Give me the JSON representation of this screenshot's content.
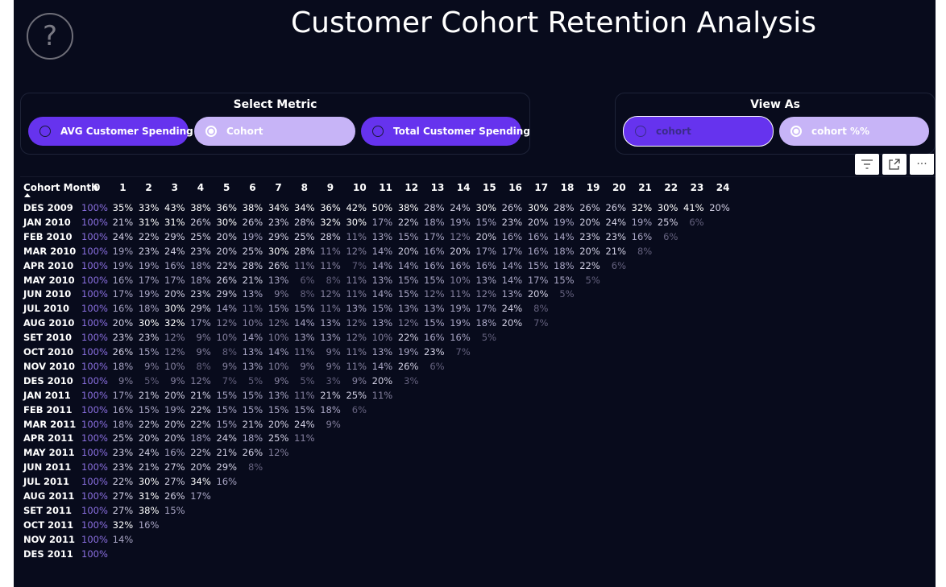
{
  "page": {
    "title": "Customer Cohort Retention Analysis",
    "help_icon": "question-mark-icon"
  },
  "metric_slicer": {
    "title": "Select Metric",
    "options": [
      {
        "label": "AVG Customer Spending",
        "selected": false
      },
      {
        "label": "Cohort",
        "selected": true
      },
      {
        "label": "Total Customer Spending",
        "selected": false
      }
    ]
  },
  "view_slicer": {
    "title": "View As",
    "options": [
      {
        "label": "cohort",
        "selected": false
      },
      {
        "label": "cohort %%",
        "selected": true
      }
    ]
  },
  "visual_toolbar": {
    "icons": [
      "filter-icon",
      "focus-mode-icon",
      "more-options-icon"
    ],
    "more_label": "···"
  },
  "colors": {
    "background": "#080b1c",
    "accent_purple": "#6633ee",
    "selected_lavender": "#c7b4f7",
    "first_column": "#8a6fe0"
  },
  "chart_data": {
    "type": "table",
    "row_header": "Cohort Month",
    "columns": [
      "0",
      "1",
      "2",
      "3",
      "4",
      "5",
      "6",
      "7",
      "8",
      "9",
      "10",
      "11",
      "12",
      "13",
      "14",
      "15",
      "16",
      "17",
      "18",
      "19",
      "20",
      "21",
      "22",
      "23",
      "24"
    ],
    "rows": [
      {
        "cohort": "DES 2009",
        "values": [
          "100%",
          "35%",
          "33%",
          "43%",
          "38%",
          "36%",
          "38%",
          "34%",
          "34%",
          "36%",
          "42%",
          "50%",
          "38%",
          "28%",
          "24%",
          "30%",
          "26%",
          "30%",
          "28%",
          "26%",
          "26%",
          "32%",
          "30%",
          "41%",
          "20%"
        ]
      },
      {
        "cohort": "JAN 2010",
        "values": [
          "100%",
          "21%",
          "31%",
          "31%",
          "26%",
          "30%",
          "26%",
          "23%",
          "28%",
          "32%",
          "30%",
          "17%",
          "22%",
          "18%",
          "19%",
          "15%",
          "23%",
          "20%",
          "19%",
          "20%",
          "24%",
          "19%",
          "25%",
          "6%"
        ]
      },
      {
        "cohort": "FEB 2010",
        "values": [
          "100%",
          "24%",
          "22%",
          "29%",
          "25%",
          "20%",
          "19%",
          "29%",
          "25%",
          "28%",
          "11%",
          "13%",
          "15%",
          "17%",
          "12%",
          "20%",
          "16%",
          "16%",
          "14%",
          "23%",
          "23%",
          "16%",
          "6%"
        ]
      },
      {
        "cohort": "MAR 2010",
        "values": [
          "100%",
          "19%",
          "23%",
          "24%",
          "23%",
          "20%",
          "25%",
          "30%",
          "28%",
          "11%",
          "12%",
          "14%",
          "20%",
          "16%",
          "20%",
          "17%",
          "17%",
          "16%",
          "18%",
          "20%",
          "21%",
          "8%"
        ]
      },
      {
        "cohort": "APR 2010",
        "values": [
          "100%",
          "19%",
          "19%",
          "16%",
          "18%",
          "22%",
          "28%",
          "26%",
          "11%",
          "11%",
          "7%",
          "14%",
          "14%",
          "16%",
          "16%",
          "16%",
          "14%",
          "15%",
          "18%",
          "22%",
          "6%"
        ]
      },
      {
        "cohort": "MAY 2010",
        "values": [
          "100%",
          "16%",
          "17%",
          "17%",
          "18%",
          "26%",
          "21%",
          "13%",
          "6%",
          "8%",
          "11%",
          "13%",
          "15%",
          "15%",
          "10%",
          "13%",
          "14%",
          "17%",
          "15%",
          "5%"
        ]
      },
      {
        "cohort": "JUN 2010",
        "values": [
          "100%",
          "17%",
          "19%",
          "20%",
          "23%",
          "29%",
          "13%",
          "9%",
          "8%",
          "12%",
          "11%",
          "14%",
          "15%",
          "12%",
          "11%",
          "12%",
          "13%",
          "20%",
          "5%"
        ]
      },
      {
        "cohort": "JUL 2010",
        "values": [
          "100%",
          "16%",
          "18%",
          "30%",
          "29%",
          "14%",
          "11%",
          "15%",
          "15%",
          "11%",
          "13%",
          "15%",
          "13%",
          "13%",
          "19%",
          "17%",
          "24%",
          "8%"
        ]
      },
      {
        "cohort": "AUG 2010",
        "values": [
          "100%",
          "20%",
          "30%",
          "32%",
          "17%",
          "12%",
          "10%",
          "12%",
          "14%",
          "13%",
          "12%",
          "13%",
          "12%",
          "15%",
          "19%",
          "18%",
          "20%",
          "7%"
        ]
      },
      {
        "cohort": "SET 2010",
        "values": [
          "100%",
          "23%",
          "23%",
          "12%",
          "9%",
          "10%",
          "14%",
          "10%",
          "13%",
          "13%",
          "12%",
          "10%",
          "22%",
          "16%",
          "16%",
          "5%"
        ]
      },
      {
        "cohort": "OCT 2010",
        "values": [
          "100%",
          "26%",
          "15%",
          "12%",
          "9%",
          "8%",
          "13%",
          "14%",
          "11%",
          "9%",
          "11%",
          "13%",
          "19%",
          "23%",
          "7%"
        ]
      },
      {
        "cohort": "NOV 2010",
        "values": [
          "100%",
          "18%",
          "9%",
          "10%",
          "8%",
          "9%",
          "13%",
          "10%",
          "9%",
          "9%",
          "11%",
          "14%",
          "26%",
          "6%"
        ]
      },
      {
        "cohort": "DES 2010",
        "values": [
          "100%",
          "9%",
          "5%",
          "9%",
          "12%",
          "7%",
          "5%",
          "9%",
          "5%",
          "3%",
          "9%",
          "20%",
          "3%"
        ]
      },
      {
        "cohort": "JAN 2011",
        "values": [
          "100%",
          "17%",
          "21%",
          "20%",
          "21%",
          "15%",
          "15%",
          "13%",
          "11%",
          "21%",
          "25%",
          "11%"
        ]
      },
      {
        "cohort": "FEB 2011",
        "values": [
          "100%",
          "16%",
          "15%",
          "19%",
          "22%",
          "15%",
          "15%",
          "15%",
          "15%",
          "18%",
          "6%"
        ]
      },
      {
        "cohort": "MAR 2011",
        "values": [
          "100%",
          "18%",
          "22%",
          "20%",
          "22%",
          "15%",
          "21%",
          "20%",
          "24%",
          "9%"
        ]
      },
      {
        "cohort": "APR 2011",
        "values": [
          "100%",
          "25%",
          "20%",
          "20%",
          "18%",
          "24%",
          "18%",
          "25%",
          "11%"
        ]
      },
      {
        "cohort": "MAY 2011",
        "values": [
          "100%",
          "23%",
          "24%",
          "16%",
          "22%",
          "21%",
          "26%",
          "12%"
        ]
      },
      {
        "cohort": "JUN 2011",
        "values": [
          "100%",
          "23%",
          "21%",
          "27%",
          "20%",
          "29%",
          "8%"
        ]
      },
      {
        "cohort": "JUL 2011",
        "values": [
          "100%",
          "22%",
          "30%",
          "27%",
          "34%",
          "16%"
        ]
      },
      {
        "cohort": "AUG 2011",
        "values": [
          "100%",
          "27%",
          "31%",
          "26%",
          "17%"
        ]
      },
      {
        "cohort": "SET 2011",
        "values": [
          "100%",
          "27%",
          "38%",
          "15%"
        ]
      },
      {
        "cohort": "OCT 2011",
        "values": [
          "100%",
          "32%",
          "16%"
        ]
      },
      {
        "cohort": "NOV 2011",
        "values": [
          "100%",
          "14%"
        ]
      },
      {
        "cohort": "DES 2011",
        "values": [
          "100%"
        ]
      }
    ]
  }
}
